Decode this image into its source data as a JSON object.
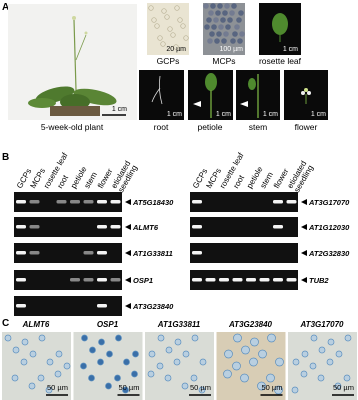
{
  "panel_a": {
    "label": "A",
    "plant": {
      "scale": "1 cm",
      "caption": "5-week-old plant"
    },
    "top_images": [
      {
        "caption": "GCPs",
        "scale": "20 µm"
      },
      {
        "caption": "MCPs",
        "scale": "100 µm"
      },
      {
        "caption": "rosette leaf",
        "scale": "1 cm"
      }
    ],
    "bottom_images": [
      {
        "caption": "root",
        "scale": "1 cm"
      },
      {
        "caption": "petiole",
        "scale": "1 cm"
      },
      {
        "caption": "stem",
        "scale": "1 cm"
      },
      {
        "caption": "flower",
        "scale": "1 cm"
      }
    ]
  },
  "panel_b": {
    "label": "B",
    "gels": [
      {
        "lanes": [
          [
            "GCPs"
          ],
          [
            "MCPs"
          ],
          [
            "rosette leaf"
          ],
          [
            "root"
          ],
          [
            "petiole"
          ],
          [
            "stem"
          ],
          [
            "flower"
          ],
          [
            "etiolated",
            "seedling"
          ]
        ],
        "genes": [
          "AT5G18430",
          "ALMT6",
          "AT1G33811",
          "OSP1",
          "AT3G23840"
        ]
      },
      {
        "lanes": [
          [
            "GCPs"
          ],
          [
            "MCPs"
          ],
          [
            "rosette leaf"
          ],
          [
            "root"
          ],
          [
            "petiole"
          ],
          [
            "stem"
          ],
          [
            "flower"
          ],
          [
            "etiolated",
            "seedling"
          ]
        ],
        "genes": [
          "AT3G17070",
          "AT1G12030",
          "AT2G32830",
          "TUB2"
        ]
      }
    ]
  },
  "panel_c": {
    "label": "C",
    "images": [
      {
        "gene": "ALMT6",
        "scale": "50 µm"
      },
      {
        "gene": "OSP1",
        "scale": "50 µm"
      },
      {
        "gene": "AT1G33811",
        "scale": "50 µm"
      },
      {
        "gene": "AT3G23840",
        "scale": "50 µm"
      },
      {
        "gene": "AT3G17070",
        "scale": "50 µm"
      }
    ]
  }
}
